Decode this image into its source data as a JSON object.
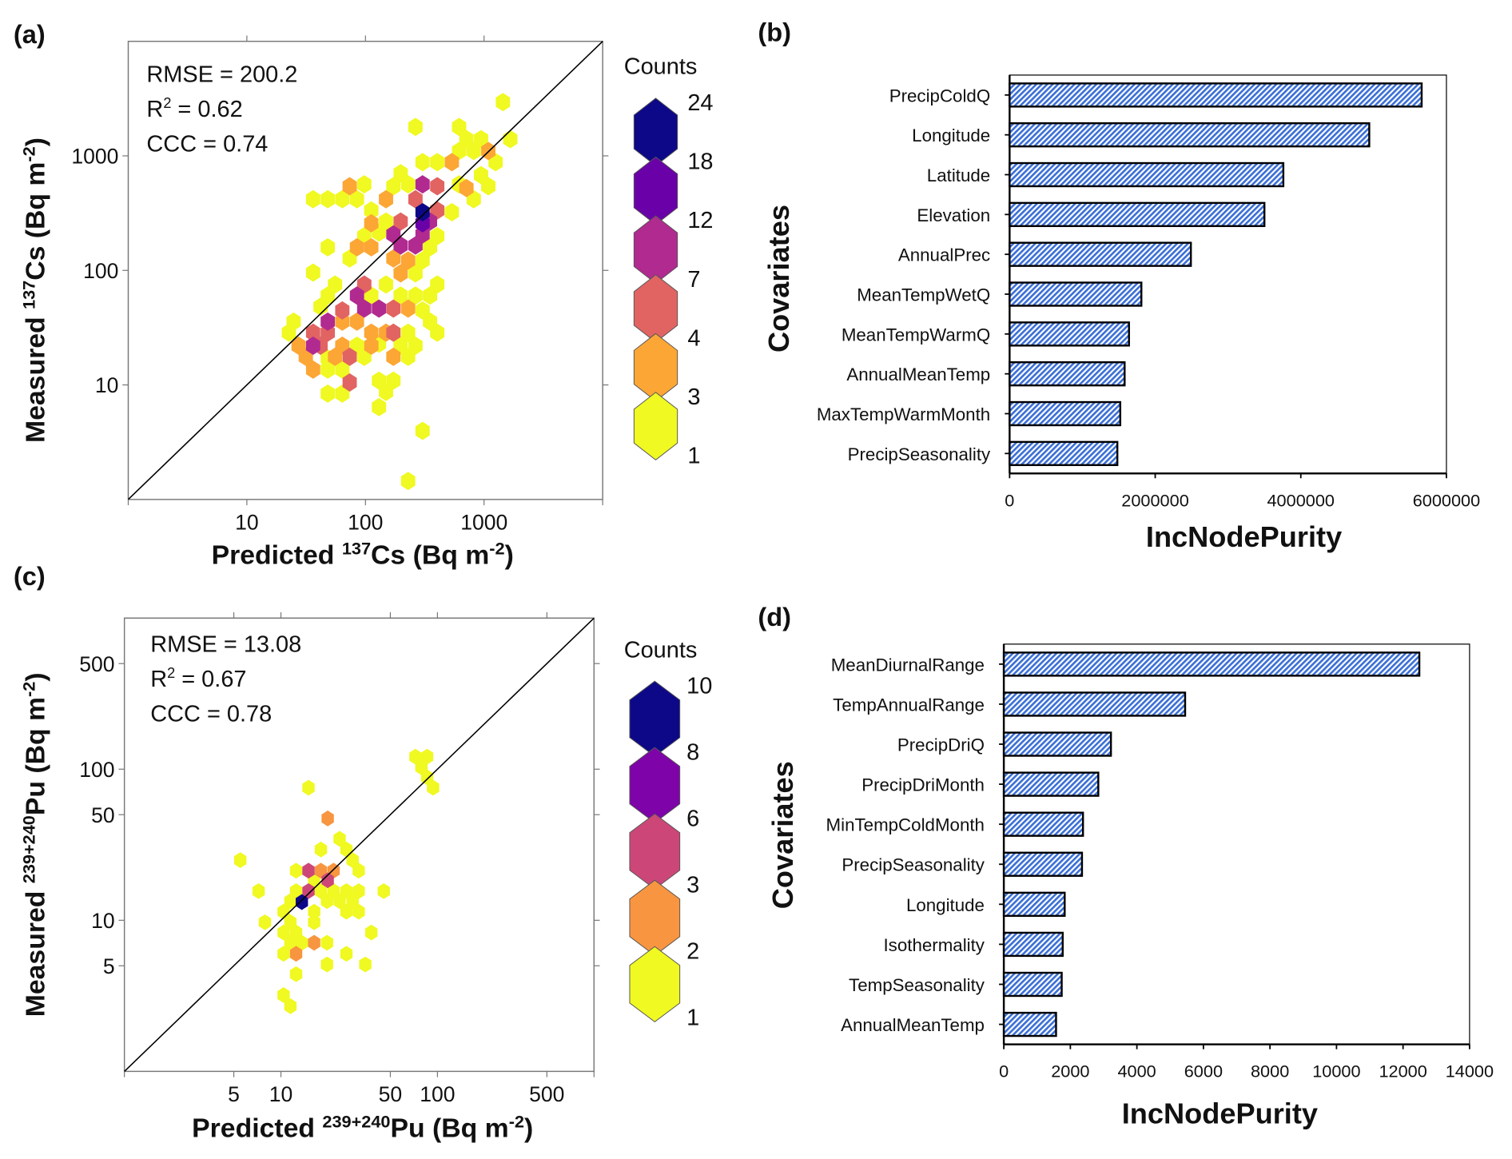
{
  "panel_labels": {
    "a": "(a)",
    "b": "(b)",
    "c": "(c)",
    "d": "(d)"
  },
  "chart_data": [
    {
      "panel": "(a)",
      "type": "scatter",
      "subtype": "hexbin",
      "x_scale": "log",
      "y_scale": "log",
      "xlim": [
        1,
        10000
      ],
      "ylim": [
        1,
        10000
      ],
      "grid": false,
      "identity_line": true,
      "xlabel": {
        "pre": "Predicted ",
        "sup": "137",
        "mid": "Cs (Bq m",
        "sup2": "-2",
        "post": ")"
      },
      "ylabel": {
        "pre": "Measured ",
        "sup": "137",
        "mid": "Cs (Bq m",
        "sup2": "-2",
        "post": ")"
      },
      "x_ticks": [
        10,
        100,
        1000
      ],
      "x_tick_labels": [
        "10",
        "100",
        "1000"
      ],
      "y_ticks": [
        10,
        100,
        1000
      ],
      "y_tick_labels": [
        "10",
        "100",
        "1000"
      ],
      "stats": {
        "rmse": "RMSE = 200.2",
        "r2_base": "R",
        "r2_sup": "2",
        "r2_val": " = 0.62",
        "ccc": "CCC = 0.74"
      },
      "legend": {
        "title": "Counts",
        "placement": "right",
        "breaks": [
          1,
          3,
          4,
          7,
          12,
          18,
          24
        ],
        "colors": [
          "#f0f921",
          "#fca636",
          "#e16462",
          "#b12a90",
          "#6a00a8",
          "#0d0887"
        ]
      },
      "hexes": [
        [
          1442,
          2946,
          1
        ],
        [
          264,
          1788,
          1
        ],
        [
          616,
          1788,
          1
        ],
        [
          1663,
          1399,
          1
        ],
        [
          710,
          1399,
          1
        ],
        [
          943,
          1399,
          1
        ],
        [
          818,
          1102,
          1
        ],
        [
          616,
          1102,
          1
        ],
        [
          1251,
          881,
          1
        ],
        [
          303,
          881,
          1
        ],
        [
          403,
          881,
          1
        ],
        [
          198,
          705,
          1
        ],
        [
          97.7,
          564,
          1
        ],
        [
          229,
          564,
          1
        ],
        [
          943,
          679,
          1
        ],
        [
          1086,
          543,
          1
        ],
        [
          36.2,
          418,
          1
        ],
        [
          48.1,
          418,
          1
        ],
        [
          63.8,
          418,
          1
        ],
        [
          84.8,
          418,
          1
        ],
        [
          112,
          334,
          1
        ],
        [
          172,
          543,
          1
        ],
        [
          616,
          564,
          1
        ],
        [
          818,
          418,
          1
        ],
        [
          535,
          322,
          1
        ],
        [
          149,
          267,
          1
        ],
        [
          130,
          214,
          1
        ],
        [
          97.7,
          199,
          1
        ],
        [
          403,
          199,
          1
        ],
        [
          350,
          159,
          1
        ],
        [
          48.1,
          159,
          1
        ],
        [
          73.6,
          127,
          1
        ],
        [
          303,
          122,
          1
        ],
        [
          264,
          94.2,
          1
        ],
        [
          36.2,
          95.6,
          1
        ],
        [
          149,
          75.3,
          1
        ],
        [
          55.4,
          75.3,
          1
        ],
        [
          403,
          75.3,
          1
        ],
        [
          112,
          60.3,
          1
        ],
        [
          198,
          60.3,
          1
        ],
        [
          264,
          60.3,
          1
        ],
        [
          350,
          60.3,
          1
        ],
        [
          48.1,
          60.3,
          1
        ],
        [
          41.8,
          48.2,
          1
        ],
        [
          303,
          44.7,
          1
        ],
        [
          24.8,
          35.7,
          1
        ],
        [
          350,
          35.7,
          1
        ],
        [
          229,
          28.6,
          1
        ],
        [
          403,
          28.6,
          1
        ],
        [
          22.6,
          28.6,
          1
        ],
        [
          130,
          22.9,
          1
        ],
        [
          198,
          22.0,
          1
        ],
        [
          264,
          22.0,
          1
        ],
        [
          84.8,
          22.0,
          1
        ],
        [
          48.1,
          17.0,
          1
        ],
        [
          97.7,
          17.6,
          1
        ],
        [
          229,
          17.6,
          1
        ],
        [
          48.1,
          13.6,
          1
        ],
        [
          63.8,
          13.6,
          1
        ],
        [
          130,
          10.9,
          1
        ],
        [
          172,
          10.9,
          1
        ],
        [
          149,
          8.7,
          1
        ],
        [
          48.1,
          8.4,
          1
        ],
        [
          63.8,
          8.4,
          1
        ],
        [
          130,
          6.4,
          1
        ],
        [
          303,
          3.97,
          1
        ],
        [
          229,
          1.45,
          1
        ],
        [
          535,
          881,
          3
        ],
        [
          710,
          523,
          3
        ],
        [
          73.6,
          543,
          3
        ],
        [
          149,
          418,
          3
        ],
        [
          112,
          258,
          3
        ],
        [
          84.8,
          159,
          3
        ],
        [
          112,
          159,
          3
        ],
        [
          172,
          127,
          3
        ],
        [
          229,
          122,
          3
        ],
        [
          198,
          94.2,
          3
        ],
        [
          84.8,
          35.7,
          3
        ],
        [
          112,
          28.6,
          3
        ],
        [
          63.8,
          22.0,
          3
        ],
        [
          112,
          22.0,
          3
        ],
        [
          149,
          28.6,
          3
        ],
        [
          27.3,
          22.0,
          3
        ],
        [
          31.4,
          17.6,
          3
        ],
        [
          36.2,
          13.6,
          3
        ],
        [
          229,
          46.4,
          3
        ],
        [
          1086,
          1102,
          3
        ],
        [
          63.8,
          35.7,
          3
        ],
        [
          172,
          17.6,
          3
        ],
        [
          55.4,
          17.6,
          3
        ],
        [
          403,
          543,
          5
        ],
        [
          403,
          334,
          5
        ],
        [
          198,
          267,
          5
        ],
        [
          264,
          418,
          5
        ],
        [
          97.7,
          75.3,
          5
        ],
        [
          63.8,
          44.7,
          5
        ],
        [
          172,
          46.4,
          5
        ],
        [
          36.2,
          28.6,
          5
        ],
        [
          48.1,
          28.6,
          5
        ],
        [
          41.8,
          22.0,
          5
        ],
        [
          73.6,
          17.6,
          5
        ],
        [
          73.6,
          10.5,
          5
        ],
        [
          172,
          28.6,
          5
        ],
        [
          303,
          564,
          9
        ],
        [
          350,
          267,
          9
        ],
        [
          172,
          206,
          9
        ],
        [
          198,
          165,
          9
        ],
        [
          264,
          165,
          9
        ],
        [
          84.8,
          60.3,
          9
        ],
        [
          97.7,
          46.4,
          9
        ],
        [
          130,
          46.4,
          9
        ],
        [
          48.1,
          35.7,
          9
        ],
        [
          36.2,
          22.0,
          9
        ],
        [
          303,
          206,
          9
        ],
        [
          303,
          258,
          15
        ],
        [
          303,
          322,
          22
        ]
      ]
    },
    {
      "panel": "(b)",
      "type": "bar",
      "orientation": "horizontal",
      "xlabel": "IncNodePurity",
      "ylabel": "Covariates",
      "xlim": [
        0,
        6000000
      ],
      "x_ticks": [
        0,
        2000000,
        4000000,
        6000000
      ],
      "x_tick_labels": [
        "0",
        "2000000",
        "4000000",
        "6000000"
      ],
      "bar_color": "#3b6fd6",
      "bar_pattern": "diagonal-hatch",
      "categories": [
        "PrecipColdQ",
        "Longitude",
        "Latitude",
        "Elevation",
        "AnnualPrec",
        "MeanTempWetQ",
        "MeanTempWarmQ",
        "AnnualMeanTemp",
        "MaxTempWarmMonth",
        "PrecipSeasonality"
      ],
      "values": [
        5660000,
        4940000,
        3760000,
        3500000,
        2490000,
        1810000,
        1640000,
        1580000,
        1520000,
        1480000
      ]
    },
    {
      "panel": "(c)",
      "type": "scatter",
      "subtype": "hexbin",
      "x_scale": "log",
      "y_scale": "log",
      "xlim": [
        1,
        1000
      ],
      "ylim": [
        1,
        1000
      ],
      "grid": false,
      "identity_line": true,
      "xlabel": {
        "pre": "Predicted ",
        "sup": "239+240",
        "mid": "Pu (Bq m",
        "sup2": "-2",
        "post": ")"
      },
      "ylabel": {
        "pre": "Measured ",
        "sup": "239+240",
        "mid": "Pu  (Bq m",
        "sup2": "-2",
        "post": ")"
      },
      "x_ticks": [
        5,
        10,
        50,
        100,
        500
      ],
      "x_tick_labels": [
        "5",
        "10",
        "50",
        "100",
        "500"
      ],
      "y_ticks": [
        5,
        10,
        50,
        100,
        500
      ],
      "y_tick_labels": [
        "5",
        "10",
        "50",
        "100",
        "500"
      ],
      "stats": {
        "rmse": "RMSE = 13.08",
        "r2_base": "R",
        "r2_sup": "2",
        "r2_val": " = 0.67",
        "ccc": "CCC = 0.78"
      },
      "legend": {
        "title": "Counts",
        "placement": "right",
        "breaks": [
          1,
          2,
          3,
          6,
          8,
          10
        ],
        "colors": [
          "#f0f921",
          "#f89540",
          "#cc4778",
          "#7e03a8",
          "#0d0887"
        ]
      },
      "hexes": [
        [
          72.3,
          121,
          1
        ],
        [
          85.9,
          121,
          1
        ],
        [
          79.0,
          103,
          1
        ],
        [
          85.9,
          88.3,
          1
        ],
        [
          93.8,
          75.4,
          1
        ],
        [
          15.0,
          75.4,
          1
        ],
        [
          23.7,
          34.6,
          1
        ],
        [
          26.2,
          29.4,
          1
        ],
        [
          18.0,
          29.4,
          1
        ],
        [
          28.7,
          25.0,
          1
        ],
        [
          31.4,
          21.3,
          1
        ],
        [
          5.5,
          25.0,
          1
        ],
        [
          12.5,
          21.3,
          1
        ],
        [
          16.3,
          18.4,
          1
        ],
        [
          7.2,
          15.6,
          1
        ],
        [
          12.5,
          15.6,
          1
        ],
        [
          18.0,
          15.6,
          1
        ],
        [
          21.7,
          15.6,
          1
        ],
        [
          26.2,
          15.6,
          1
        ],
        [
          31.4,
          15.6,
          1
        ],
        [
          45.4,
          15.6,
          1
        ],
        [
          11.5,
          13.4,
          1
        ],
        [
          19.7,
          13.4,
          1
        ],
        [
          23.7,
          13.4,
          1
        ],
        [
          28.7,
          13.4,
          1
        ],
        [
          10.4,
          11.4,
          1
        ],
        [
          16.3,
          11.4,
          1
        ],
        [
          26.2,
          11.4,
          1
        ],
        [
          31.4,
          11.4,
          1
        ],
        [
          7.9,
          9.7,
          1
        ],
        [
          11.5,
          9.7,
          1
        ],
        [
          16.3,
          9.7,
          1
        ],
        [
          10.4,
          8.3,
          1
        ],
        [
          12.5,
          8.3,
          1
        ],
        [
          37.8,
          8.3,
          1
        ],
        [
          11.5,
          7.1,
          1
        ],
        [
          13.6,
          7.1,
          1
        ],
        [
          19.7,
          7.1,
          1
        ],
        [
          10.4,
          6.0,
          1
        ],
        [
          26.2,
          6.0,
          1
        ],
        [
          19.7,
          5.1,
          1
        ],
        [
          34.6,
          5.1,
          1
        ],
        [
          12.5,
          4.4,
          1
        ],
        [
          10.4,
          3.2,
          1
        ],
        [
          11.5,
          2.7,
          1
        ],
        [
          19.9,
          47.2,
          2
        ],
        [
          18.0,
          21.3,
          2
        ],
        [
          21.7,
          21.3,
          2
        ],
        [
          16.3,
          7.1,
          2
        ],
        [
          12.5,
          6.0,
          2
        ],
        [
          15.0,
          21.3,
          4
        ],
        [
          19.9,
          18.4,
          4
        ],
        [
          15.0,
          15.6,
          4
        ],
        [
          13.6,
          13.2,
          10
        ]
      ]
    },
    {
      "panel": "(d)",
      "type": "bar",
      "orientation": "horizontal",
      "xlabel": "IncNodePurity",
      "ylabel": "Covariates",
      "xlim": [
        0,
        14000
      ],
      "x_ticks": [
        0,
        2000,
        4000,
        6000,
        8000,
        10000,
        12000,
        14000
      ],
      "x_tick_labels": [
        "0",
        "2000",
        "4000",
        "6000",
        "8000",
        "10000",
        "12000",
        "14000"
      ],
      "bar_color": "#3b6fd6",
      "bar_pattern": "diagonal-hatch",
      "categories": [
        "MeanDiurnalRange",
        "TempAnnualRange",
        "PrecipDriQ",
        "PrecipDriMonth",
        "MinTempColdMonth",
        "PrecipSeasonality",
        "Longitude",
        "Isothermality",
        "TempSeasonality",
        "AnnualMeanTemp"
      ],
      "values": [
        12490,
        5450,
        3220,
        2840,
        2380,
        2350,
        1830,
        1770,
        1740,
        1570
      ]
    }
  ]
}
